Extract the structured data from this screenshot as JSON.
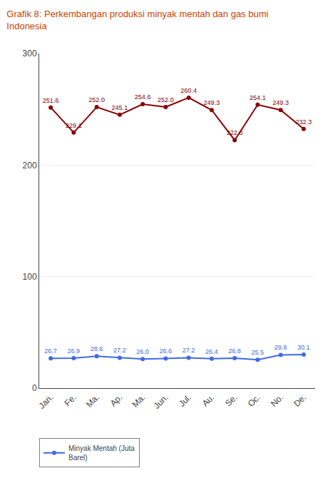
{
  "chart_data": {
    "type": "line",
    "title": "Grafik 8: Perkembangan produksi minyak mentah dan gas bumi\nIndonesia",
    "categories": [
      "Jan.",
      "Fe.",
      "Ma.",
      "Ap.",
      "Ma.",
      "Jun.",
      "Jul.",
      "Au.",
      "Se.",
      "Oc.",
      "No.",
      "De."
    ],
    "series": [
      {
        "color": "#8B0000",
        "marker": "circle",
        "values": [
          251.6,
          229.1,
          252.0,
          245.1,
          254.6,
          252.0,
          260.4,
          249.3,
          222.3,
          254.1,
          249.3,
          232.3
        ],
        "value_labels": [
          "251.6",
          "229.1",
          "252.0",
          "245.1",
          "254.6",
          "252.0",
          "260.4",
          "249.3",
          "222.3",
          "254.1",
          "249.3",
          "232.3"
        ]
      },
      {
        "name": "Minyak Mentah (Juta\nBarel)",
        "color": "#4169E1",
        "marker": "circle",
        "values": [
          26.7,
          26.9,
          28.6,
          27.2,
          26.0,
          26.6,
          27.2,
          26.4,
          26.8,
          25.5,
          29.8,
          30.1
        ],
        "value_labels": [
          "26.7",
          "26.9",
          "28.6",
          "27.2",
          "26.0",
          "26.6",
          "27.2",
          "26.4",
          "26.8",
          "25.5",
          "29.8",
          "30.1"
        ]
      }
    ],
    "ylim": [
      0,
      300
    ],
    "yticks": [
      0,
      100,
      200,
      300
    ],
    "grid": true,
    "legend": "lower left",
    "data_labels": true
  }
}
